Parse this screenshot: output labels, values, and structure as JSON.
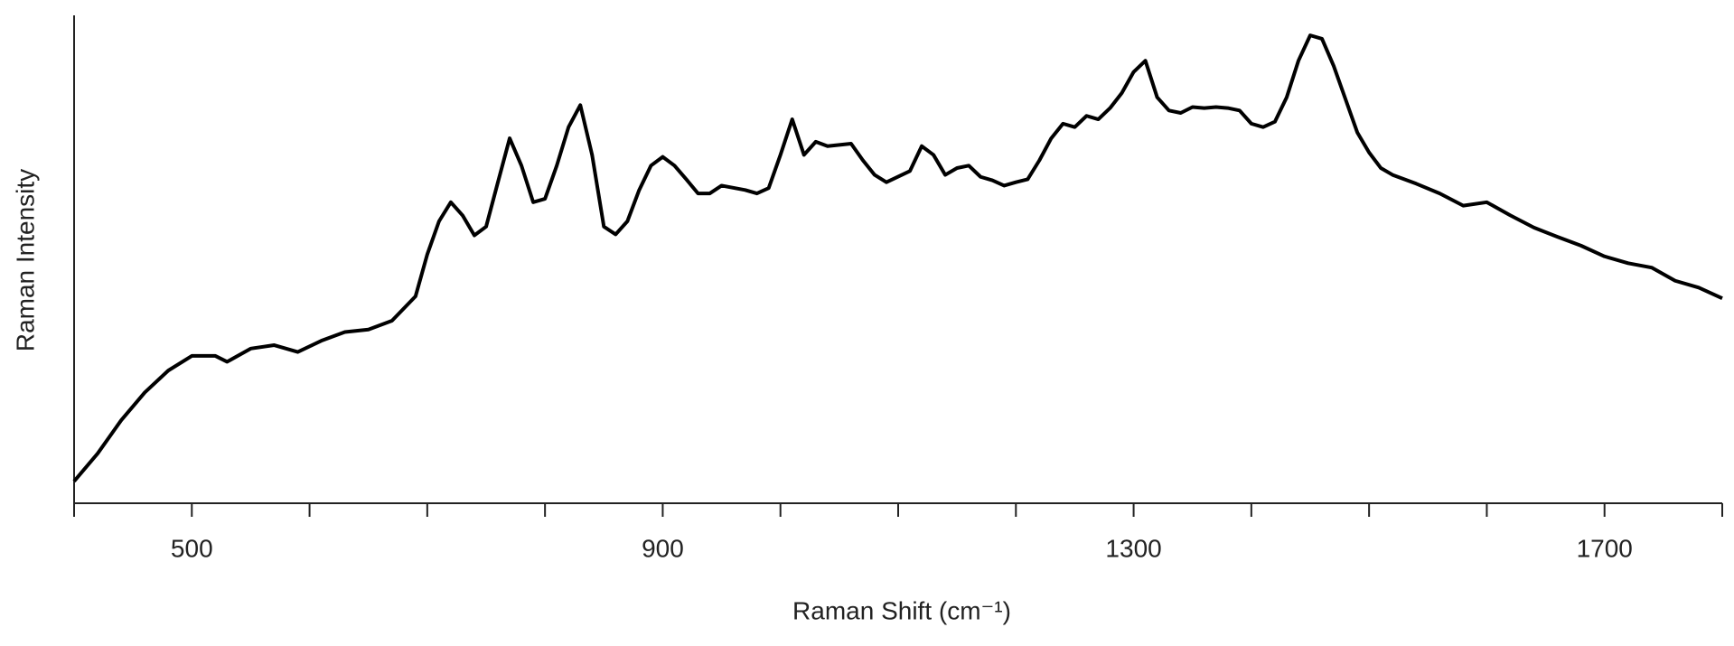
{
  "chart_data": {
    "type": "line",
    "x_label": "Raman Shift (cm⁻¹)",
    "y_label": "Raman Intensity",
    "x": [
      400,
      420,
      440,
      460,
      480,
      500,
      520,
      530,
      550,
      570,
      590,
      610,
      630,
      650,
      670,
      690,
      700,
      710,
      720,
      730,
      740,
      750,
      760,
      770,
      780,
      790,
      800,
      810,
      820,
      830,
      840,
      850,
      860,
      870,
      880,
      890,
      900,
      910,
      920,
      930,
      940,
      950,
      970,
      980,
      990,
      1000,
      1010,
      1020,
      1030,
      1040,
      1060,
      1070,
      1080,
      1090,
      1110,
      1120,
      1130,
      1140,
      1150,
      1160,
      1170,
      1180,
      1190,
      1200,
      1210,
      1220,
      1230,
      1240,
      1250,
      1260,
      1270,
      1280,
      1290,
      1300,
      1310,
      1320,
      1330,
      1340,
      1350,
      1360,
      1370,
      1380,
      1390,
      1400,
      1410,
      1420,
      1430,
      1440,
      1450,
      1460,
      1470,
      1480,
      1490,
      1500,
      1510,
      1520,
      1540,
      1560,
      1580,
      1600,
      1620,
      1640,
      1660,
      1680,
      1700,
      1720,
      1740,
      1760,
      1780,
      1800
    ],
    "series": [
      {
        "color": "#000000",
        "values": [
          4.5,
          10.2,
          17,
          22.7,
          27.2,
          30.2,
          30.2,
          29,
          31.7,
          32.4,
          31,
          33.3,
          35.1,
          35.6,
          37.4,
          42.4,
          51,
          57.8,
          61.7,
          59,
          54.9,
          56.7,
          65.8,
          74.8,
          69.2,
          61.7,
          62.4,
          69.2,
          77.1,
          81.6,
          71.4,
          56.7,
          55.1,
          57.8,
          64.2,
          69.2,
          71,
          69.2,
          66.4,
          63.5,
          63.5,
          65.1,
          64.2,
          63.5,
          64.6,
          71.4,
          78.7,
          71.4,
          74.1,
          73.2,
          73.7,
          70.3,
          67.3,
          65.8,
          68.1,
          73.2,
          71.4,
          67.3,
          68.7,
          69.2,
          66.9,
          66.2,
          65.1,
          65.8,
          66.4,
          70.3,
          74.8,
          77.8,
          77.1,
          79.4,
          78.7,
          81,
          84.1,
          88.4,
          90.7,
          83.2,
          80.5,
          80,
          81.2,
          81,
          81.2,
          81,
          80.5,
          77.8,
          77.1,
          78.2,
          83.2,
          90.7,
          95.9,
          95.2,
          89.6,
          82.8,
          76,
          71.9,
          68.7,
          67.3,
          65.5,
          63.5,
          61,
          61.7,
          59,
          56.5,
          54.6,
          52.8,
          50.6,
          49.2,
          48.3,
          45.6,
          44.2,
          42
        ]
      }
    ],
    "xlim": [
      400,
      1800
    ],
    "xticks": [
      500,
      900,
      1300,
      1700
    ],
    "xminor_ticks": [
      400,
      600,
      700,
      800,
      1000,
      1100,
      1200,
      1400,
      1500,
      1600,
      1800
    ],
    "ylim": [
      0,
      100
    ]
  }
}
